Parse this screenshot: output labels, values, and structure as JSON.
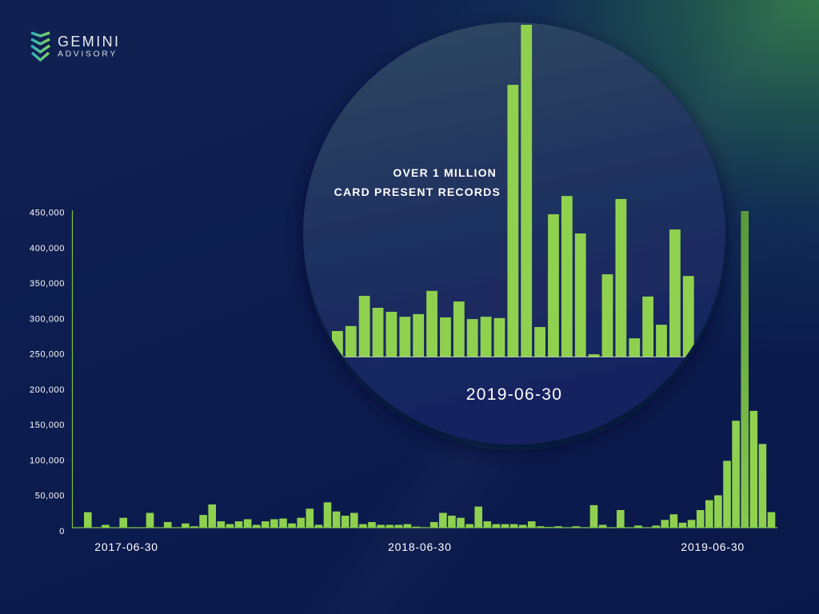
{
  "logo": {
    "brand_name": "GEMINI",
    "brand_sub": "ADVISORY",
    "icon": "chevron-stack-icon"
  },
  "colors": {
    "bar": "#8fd14f",
    "peak_bar_top": "#5a9a3c",
    "peak_bar_bottom": "#86c94c",
    "axis": "#7cc546",
    "inset_baseline": "#b6c7a9",
    "brand_accent_start": "#2cb0c4",
    "brand_accent_end": "#86d65a"
  },
  "chart_data": [
    {
      "type": "bar",
      "title": "",
      "xlabel": "",
      "ylabel": "",
      "grid": false,
      "ylim": [
        0,
        450000
      ],
      "yticks": [
        0,
        50000,
        100000,
        150000,
        200000,
        250000,
        300000,
        350000,
        400000,
        450000
      ],
      "ytick_labels": [
        "0",
        "50,000",
        "100,000",
        "150,000",
        "200,000",
        "250,000",
        "300,000",
        "350,000",
        "400,000",
        "450,000"
      ],
      "xticks": [
        {
          "label": "2017-06-30",
          "index": 4.35
        },
        {
          "label": "2018-06-30",
          "index": 37.4
        },
        {
          "label": "2019-06-30",
          "index": 70.4
        }
      ],
      "values": [
        22000,
        0,
        4000,
        0,
        14000,
        0,
        0,
        21000,
        0,
        8000,
        0,
        6000,
        2000,
        18000,
        33000,
        9000,
        5000,
        9000,
        12000,
        4000,
        9000,
        12000,
        13000,
        6000,
        14000,
        27000,
        4000,
        36000,
        23000,
        17000,
        21000,
        5000,
        8000,
        4000,
        4000,
        4000,
        5000,
        1500,
        0,
        8000,
        21000,
        17000,
        14000,
        5000,
        30000,
        9000,
        5000,
        5000,
        5000,
        4000,
        9000,
        2000,
        1000,
        2000,
        0,
        2000,
        0,
        32000,
        4000,
        0,
        25000,
        0,
        3000,
        0,
        3000,
        11000,
        19000,
        7000,
        11000,
        25000,
        39000,
        46000,
        95000,
        152000,
        450000,
        166000,
        119000,
        22000
      ],
      "highlight_index": 74
    },
    {
      "type": "bar",
      "annotation": [
        "OVER 1 MILLION",
        "CARD PRESENT RECORDS"
      ],
      "xlabel": "2019-06-30",
      "ylim": [
        0,
        100
      ],
      "values": [
        7.7,
        9.2,
        18.3,
        14.7,
        13.5,
        12.0,
        12.8,
        19.8,
        11.8,
        16.6,
        11.3,
        12.0,
        11.6,
        81.9,
        100,
        8.9,
        42.9,
        48.4,
        37.1,
        0.7,
        24.8,
        47.5,
        5.5,
        18.1,
        9.6,
        38.3,
        24.3
      ]
    }
  ]
}
